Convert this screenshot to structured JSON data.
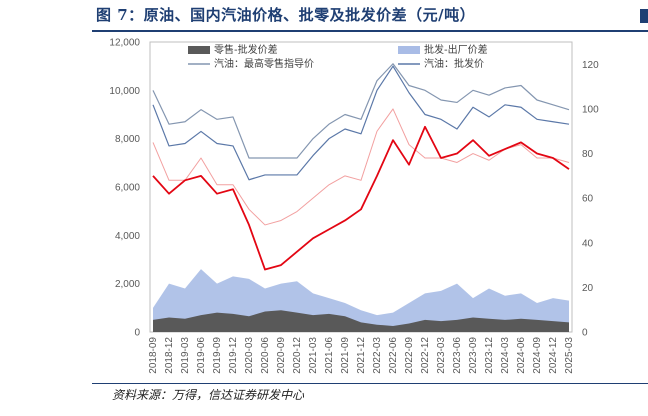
{
  "title": "图 7：原油、国内汽油价格、批零及批发价差（元/吨）",
  "source": "资料来源：万得，信达证券研发中心",
  "colors": {
    "retail_spread": "#595959",
    "wholesale_spread": "#a9bce6",
    "retail_price": "#8496b0",
    "wholesale_price": "#5b78a8",
    "crude": "#e30613",
    "retail_pct": "#f2a0a0",
    "title": "#1f3f73"
  },
  "chart_data": {
    "type": "line",
    "left_axis": {
      "min": 0,
      "max": 12000,
      "ticks": [
        "0",
        "2,000",
        "4,000",
        "6,000",
        "8,000",
        "10,000",
        "12,000"
      ],
      "values": [
        0,
        2000,
        4000,
        6000,
        8000,
        10000,
        12000
      ]
    },
    "right_axis": {
      "min": 0,
      "max": 130,
      "ticks": [
        "0",
        "20",
        "40",
        "60",
        "80",
        "100",
        "120"
      ],
      "values": [
        0,
        20,
        40,
        60,
        80,
        100,
        120
      ]
    },
    "x_ticks": [
      "2018-09",
      "2018-12",
      "2019-03",
      "2019-06",
      "2019-09",
      "2019-12",
      "2020-03",
      "2020-06",
      "2020-09",
      "2020-12",
      "2021-03",
      "2021-06",
      "2021-09",
      "2021-12",
      "2022-03",
      "2022-06",
      "2022-09",
      "2022-12",
      "2023-03",
      "2023-06",
      "2023-09",
      "2023-12",
      "2024-03",
      "2024-06",
      "2024-09",
      "2024-12",
      "2025-03"
    ],
    "legend": [
      "零售-批发价差",
      "批发-出厂价差",
      "汽油：最高零售指导价",
      "汽油：批发价"
    ],
    "series": [
      {
        "name": "零售-批发价差",
        "kind": "area",
        "axis": "left",
        "x": [
          "2018-09",
          "2018-12",
          "2019-03",
          "2019-06",
          "2019-09",
          "2019-12",
          "2020-03",
          "2020-06",
          "2020-09",
          "2020-12",
          "2021-03",
          "2021-06",
          "2021-09",
          "2021-12",
          "2022-03",
          "2022-06",
          "2022-09",
          "2022-12",
          "2023-03",
          "2023-06",
          "2023-09",
          "2023-12",
          "2024-03",
          "2024-06",
          "2024-09",
          "2024-12",
          "2025-03"
        ],
        "values": [
          500,
          600,
          550,
          700,
          800,
          750,
          650,
          850,
          900,
          800,
          700,
          750,
          650,
          400,
          300,
          250,
          350,
          500,
          450,
          500,
          600,
          550,
          500,
          550,
          500,
          450,
          400
        ]
      },
      {
        "name": "批发-出厂价差",
        "kind": "area",
        "axis": "left",
        "x": [
          "2018-09",
          "2018-12",
          "2019-03",
          "2019-06",
          "2019-09",
          "2019-12",
          "2020-03",
          "2020-06",
          "2020-09",
          "2020-12",
          "2021-03",
          "2021-06",
          "2021-09",
          "2021-12",
          "2022-03",
          "2022-06",
          "2022-09",
          "2022-12",
          "2023-03",
          "2023-06",
          "2023-09",
          "2023-12",
          "2024-03",
          "2024-06",
          "2024-09",
          "2024-12",
          "2025-03"
        ],
        "values": [
          1000,
          2000,
          1800,
          2600,
          2000,
          2300,
          2200,
          1800,
          2000,
          2100,
          1600,
          1400,
          1200,
          900,
          700,
          800,
          1200,
          1600,
          1700,
          2000,
          1400,
          1800,
          1500,
          1600,
          1200,
          1400,
          1300
        ]
      },
      {
        "name": "汽油：最高零售指导价",
        "kind": "line",
        "axis": "left",
        "x": [
          "2018-09",
          "2018-12",
          "2019-03",
          "2019-06",
          "2019-09",
          "2019-12",
          "2020-03",
          "2020-06",
          "2020-09",
          "2020-12",
          "2021-03",
          "2021-06",
          "2021-09",
          "2021-12",
          "2022-03",
          "2022-06",
          "2022-09",
          "2022-12",
          "2023-03",
          "2023-06",
          "2023-09",
          "2023-12",
          "2024-03",
          "2024-06",
          "2024-09",
          "2024-12",
          "2025-03"
        ],
        "values": [
          10000,
          8600,
          8700,
          9200,
          8800,
          8900,
          7200,
          7200,
          7200,
          7200,
          8000,
          8600,
          9000,
          8800,
          10400,
          11100,
          10200,
          10000,
          9600,
          9500,
          10000,
          9800,
          10100,
          10200,
          9600,
          9400,
          9200
        ]
      },
      {
        "name": "汽油：批发价",
        "kind": "line",
        "axis": "left",
        "x": [
          "2018-09",
          "2018-12",
          "2019-03",
          "2019-06",
          "2019-09",
          "2019-12",
          "2020-03",
          "2020-06",
          "2020-09",
          "2020-12",
          "2021-03",
          "2021-06",
          "2021-09",
          "2021-12",
          "2022-03",
          "2022-06",
          "2022-09",
          "2022-12",
          "2023-03",
          "2023-06",
          "2023-09",
          "2023-12",
          "2024-03",
          "2024-06",
          "2024-09",
          "2024-12",
          "2025-03"
        ],
        "values": [
          9400,
          7700,
          7800,
          8300,
          7800,
          7700,
          6300,
          6500,
          6500,
          6500,
          7300,
          8000,
          8400,
          8200,
          10000,
          11000,
          9900,
          9000,
          8800,
          8400,
          9300,
          8900,
          9400,
          9300,
          8800,
          8700,
          8600
        ]
      },
      {
        "name": "",
        "kind": "line",
        "axis": "right",
        "x": [
          "2018-09",
          "2018-12",
          "2019-03",
          "2019-06",
          "2019-09",
          "2019-12",
          "2020-03",
          "2020-06",
          "2020-09",
          "2020-12",
          "2021-03",
          "2021-06",
          "2021-09",
          "2021-12",
          "2022-03",
          "2022-06",
          "2022-09",
          "2022-12",
          "2023-03",
          "2023-06",
          "2023-09",
          "2023-12",
          "2024-03",
          "2024-06",
          "2024-09",
          "2024-12",
          "2025-03"
        ],
        "values": [
          70,
          62,
          68,
          70,
          62,
          64,
          48,
          28,
          30,
          36,
          42,
          46,
          50,
          55,
          70,
          86,
          75,
          92,
          78,
          80,
          86,
          79,
          82,
          85,
          80,
          78,
          73
        ]
      },
      {
        "name": "",
        "kind": "line",
        "axis": "right",
        "x": [
          "2018-09",
          "2018-12",
          "2019-03",
          "2019-06",
          "2019-09",
          "2019-12",
          "2020-03",
          "2020-06",
          "2020-09",
          "2020-12",
          "2021-03",
          "2021-06",
          "2021-09",
          "2021-12",
          "2022-03",
          "2022-06",
          "2022-09",
          "2022-12",
          "2023-03",
          "2023-06",
          "2023-09",
          "2023-12",
          "2024-03",
          "2024-06",
          "2024-09",
          "2024-12",
          "2025-03"
        ],
        "values": [
          85,
          68,
          68,
          78,
          66,
          66,
          55,
          48,
          50,
          54,
          60,
          66,
          70,
          68,
          90,
          100,
          84,
          78,
          78,
          76,
          80,
          77,
          82,
          84,
          78,
          78,
          76
        ]
      }
    ]
  }
}
